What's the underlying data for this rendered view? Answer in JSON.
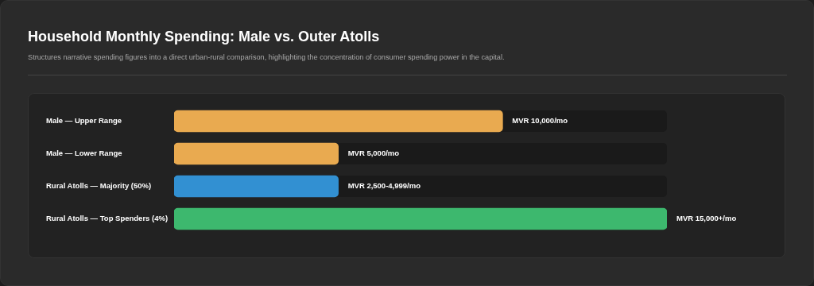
{
  "chart_data": {
    "type": "bar",
    "orientation": "horizontal",
    "title": "Household Monthly Spending: Male vs. Outer Atolls",
    "subtitle": "Structures narrative spending figures into a direct urban-rural comparison, highlighting the concentration of consumer spending power in the capital.",
    "categories": [
      "Male — Upper Range",
      "Male — Lower Range",
      "Rural Atolls — Majority (50%)",
      "Rural Atolls — Top Spenders (4%)"
    ],
    "values": [
      10000,
      5000,
      4999,
      15000
    ],
    "xlim": [
      0,
      15000
    ],
    "tick_labels": "y",
    "colors": [
      "#e9aa50",
      "#e9aa50",
      "#3290d2",
      "#3db86e"
    ],
    "value_labels": [
      "MVR 10,000/mo",
      "MVR 5,000/mo",
      "MVR 2,500-4,999/mo",
      "MVR 15,000+/mo"
    ]
  }
}
